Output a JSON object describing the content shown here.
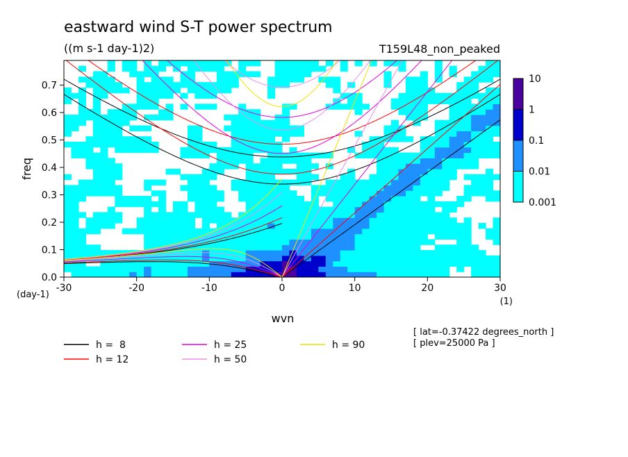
{
  "chart_data": {
    "type": "heatmap",
    "title": "eastward wind S-T power spectrum",
    "units": "((m s-1 day-1)2)",
    "run_label": "T159L48_non_peaked",
    "xlabel": "wvn",
    "ylabel": "freq",
    "x_unit_label": "(1)",
    "y_unit_label": "(day-1)",
    "xlim": [
      -30,
      30
    ],
    "ylim": [
      0,
      0.79
    ],
    "xticks": [
      -30,
      -20,
      -10,
      0,
      10,
      20,
      30
    ],
    "yticks": [
      0.0,
      0.1,
      0.2,
      0.3,
      0.4,
      0.5,
      0.6,
      0.7
    ],
    "xtick_labels": [
      "-30",
      "-20",
      "-10",
      "0",
      "10",
      "20",
      "30"
    ],
    "ytick_labels": [
      "0.0",
      "0.1",
      "0.2",
      "0.3",
      "0.4",
      "0.5",
      "0.6",
      "0.7"
    ],
    "colorbar": {
      "levels": [
        0.001,
        0.01,
        0.1,
        1,
        10
      ],
      "labels": [
        "0.001",
        "0.01",
        "0.1",
        "1",
        "10"
      ],
      "colors": [
        "#00ffff",
        "#1e90ff",
        "#0000cd",
        "#4b00a0"
      ]
    },
    "dispersion_curves": [
      {
        "name": "h =  8",
        "h": 8,
        "color": "#000000"
      },
      {
        "name": "h = 12",
        "h": 12,
        "color": "#ff0000"
      },
      {
        "name": "h = 25",
        "h": 25,
        "color": "#e000e0"
      },
      {
        "name": "h = 50",
        "h": 50,
        "color": "#e890e8"
      },
      {
        "name": "h = 90",
        "h": 90,
        "color": "#f0e000"
      }
    ],
    "meta": [
      "[ lat=-0.37422 degrees_north ]",
      "[ plev=25000 Pa ]"
    ]
  }
}
